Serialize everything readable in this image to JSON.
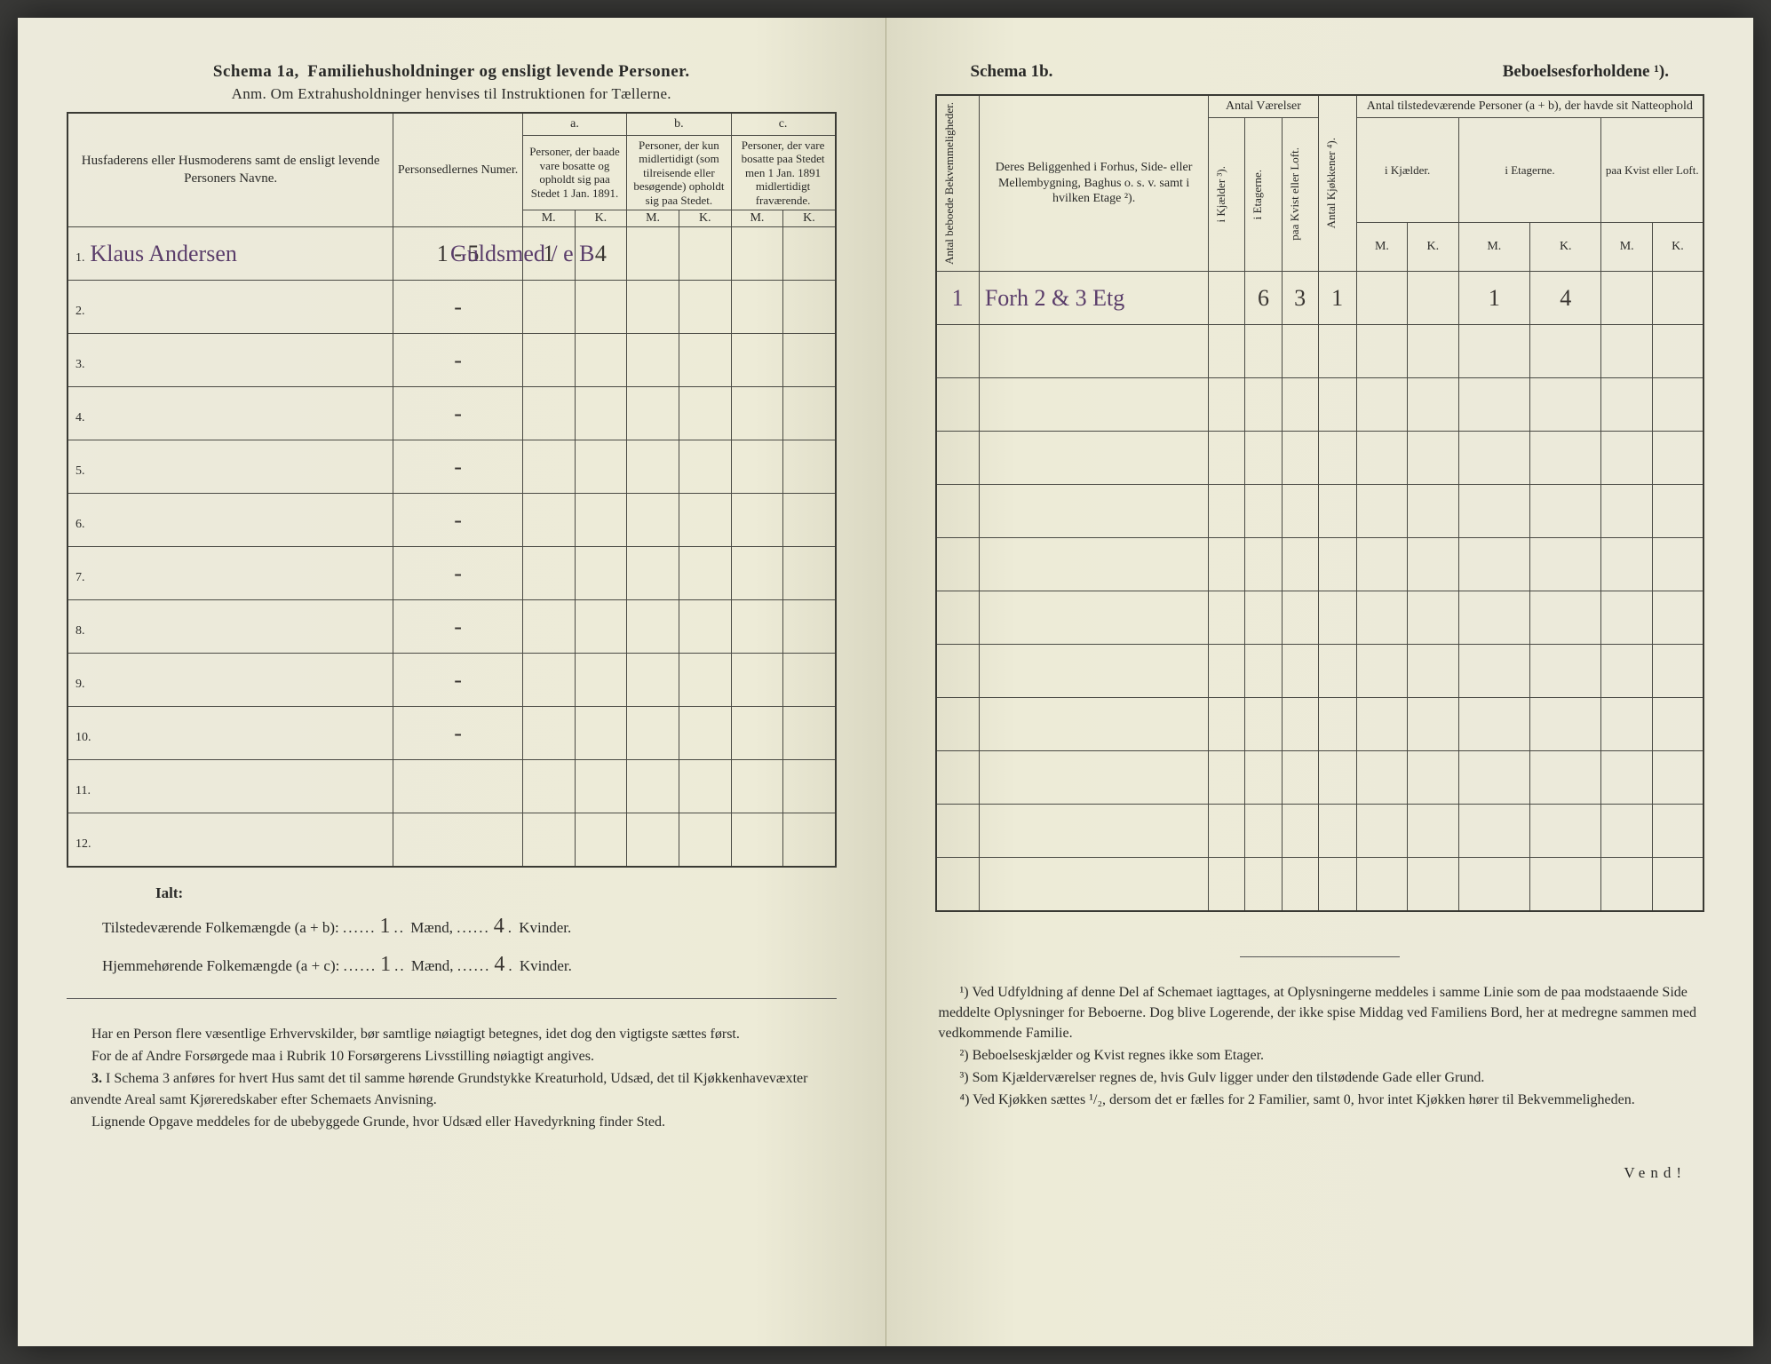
{
  "left": {
    "title_prefix": "Schema 1a,",
    "title_main": "Familiehusholdninger og ensligt levende Personer.",
    "anm": "Anm. Om Extrahusholdninger henvises til Instruktionen for Tællerne.",
    "header_name": "Husfaderens eller Husmoderens samt de ensligt levende Personers Navne.",
    "header_numer": "Personsedlernes Numer.",
    "col_a": "a.",
    "col_b": "b.",
    "col_c": "c.",
    "col_a_txt": "Personer, der baade vare bosatte og opholdt sig paa Stedet 1 Jan. 1891.",
    "col_b_txt": "Personer, der kun midlertidigt (som tilreisende eller besøgende) opholdt sig paa Stedet.",
    "col_c_txt": "Personer, der vare bosatte paa Stedet men 1 Jan. 1891 midlertidigt fraværende.",
    "mk_m": "M.",
    "mk_k": "K.",
    "rows": [
      {
        "n": "1.",
        "name": "Klaus Andersen",
        "numer": "1 - 5",
        "aM": "1",
        "aK": "4",
        "bM": "",
        "bK": "",
        "cM": "",
        "cK": "",
        "occ": "Guldsmed / e B"
      },
      {
        "n": "2.",
        "name": "",
        "numer": "-",
        "aM": "",
        "aK": "",
        "bM": "",
        "bK": "",
        "cM": "",
        "cK": ""
      },
      {
        "n": "3.",
        "name": "",
        "numer": "-",
        "aM": "",
        "aK": "",
        "bM": "",
        "bK": "",
        "cM": "",
        "cK": ""
      },
      {
        "n": "4.",
        "name": "",
        "numer": "-",
        "aM": "",
        "aK": "",
        "bM": "",
        "bK": "",
        "cM": "",
        "cK": ""
      },
      {
        "n": "5.",
        "name": "",
        "numer": "-",
        "aM": "",
        "aK": "",
        "bM": "",
        "bK": "",
        "cM": "",
        "cK": ""
      },
      {
        "n": "6.",
        "name": "",
        "numer": "-",
        "aM": "",
        "aK": "",
        "bM": "",
        "bK": "",
        "cM": "",
        "cK": ""
      },
      {
        "n": "7.",
        "name": "",
        "numer": "-",
        "aM": "",
        "aK": "",
        "bM": "",
        "bK": "",
        "cM": "",
        "cK": ""
      },
      {
        "n": "8.",
        "name": "",
        "numer": "-",
        "aM": "",
        "aK": "",
        "bM": "",
        "bK": "",
        "cM": "",
        "cK": ""
      },
      {
        "n": "9.",
        "name": "",
        "numer": "-",
        "aM": "",
        "aK": "",
        "bM": "",
        "bK": "",
        "cM": "",
        "cK": ""
      },
      {
        "n": "10.",
        "name": "",
        "numer": "-",
        "aM": "",
        "aK": "",
        "bM": "",
        "bK": "",
        "cM": "",
        "cK": ""
      },
      {
        "n": "11.",
        "name": "",
        "numer": "",
        "aM": "",
        "aK": "",
        "bM": "",
        "bK": "",
        "cM": "",
        "cK": ""
      },
      {
        "n": "12.",
        "name": "",
        "numer": "",
        "aM": "",
        "aK": "",
        "bM": "",
        "bK": "",
        "cM": "",
        "cK": ""
      }
    ],
    "totals_label": "Ialt:",
    "totals_line1_a": "Tilstedeværende Folkemængde (a + b):",
    "totals_line1_m": "1",
    "totals_m_lbl": "Mænd,",
    "totals_line1_k": "4",
    "totals_k_lbl": "Kvinder.",
    "totals_line2_a": "Hjemmehørende Folkemængde (a + c):",
    "totals_line2_m": "1",
    "totals_line2_k": "4",
    "foot_p1": "Har en Person flere væsentlige Erhvervskilder, bør samtlige nøiagtigt betegnes, idet dog den vigtigste sættes først.",
    "foot_p2": "For de af Andre Forsørgede maa i Rubrik 10 Forsørgerens Livsstilling nøiagtigt angives.",
    "foot_p3_lead": "3.",
    "foot_p3": "I Schema 3 anføres for hvert Hus samt det til samme hørende Grundstykke Kreaturhold, Udsæd, det til Kjøkkenhavevæxter anvendte Areal samt Kjøreredskaber efter Schemaets Anvisning.",
    "foot_p4": "Lignende Opgave meddeles for de ubebyggede Grunde, hvor Udsæd eller Havedyrkning finder Sted."
  },
  "right": {
    "title_left": "Schema 1b.",
    "title_right": "Beboelsesforholdene ¹).",
    "h_antal_bekv": "Antal beboede Bekvemmeligheder.",
    "h_belig": "Deres Beliggenhed i Forhus, Side- eller Mellembygning, Baghus o. s. v. samt i hvilken Etage ²).",
    "h_vaer": "Antal Værelser",
    "h_kjokken": "Antal Kjøkkener ⁴).",
    "h_tilst": "Antal tilstedeværende Personer (a + b), der havde sit Natteophold",
    "h_kjael": "i Kjælder ³).",
    "h_etag": "i Etagerne.",
    "h_kvist": "paa Kvist eller Loft.",
    "h_ikjael": "i Kjælder.",
    "h_ietag": "i Etagerne.",
    "h_paakvist": "paa Kvist eller Loft.",
    "mk_m": "M.",
    "mk_k": "K.",
    "rows": [
      {
        "bekv": "1",
        "belig": "Forh 2 & 3 Etg",
        "kjael": "",
        "etag": "6",
        "kvist": "3",
        "kjok": "1",
        "kM": "",
        "kK": "",
        "eM": "1",
        "eK": "4",
        "lM": "",
        "lK": ""
      },
      {
        "bekv": "",
        "belig": "",
        "kjael": "",
        "etag": "",
        "kvist": "",
        "kjok": "",
        "kM": "",
        "kK": "",
        "eM": "",
        "eK": "",
        "lM": "",
        "lK": ""
      },
      {
        "bekv": "",
        "belig": "",
        "kjael": "",
        "etag": "",
        "kvist": "",
        "kjok": "",
        "kM": "",
        "kK": "",
        "eM": "",
        "eK": "",
        "lM": "",
        "lK": ""
      },
      {
        "bekv": "",
        "belig": "",
        "kjael": "",
        "etag": "",
        "kvist": "",
        "kjok": "",
        "kM": "",
        "kK": "",
        "eM": "",
        "eK": "",
        "lM": "",
        "lK": ""
      },
      {
        "bekv": "",
        "belig": "",
        "kjael": "",
        "etag": "",
        "kvist": "",
        "kjok": "",
        "kM": "",
        "kK": "",
        "eM": "",
        "eK": "",
        "lM": "",
        "lK": ""
      },
      {
        "bekv": "",
        "belig": "",
        "kjael": "",
        "etag": "",
        "kvist": "",
        "kjok": "",
        "kM": "",
        "kK": "",
        "eM": "",
        "eK": "",
        "lM": "",
        "lK": ""
      },
      {
        "bekv": "",
        "belig": "",
        "kjael": "",
        "etag": "",
        "kvist": "",
        "kjok": "",
        "kM": "",
        "kK": "",
        "eM": "",
        "eK": "",
        "lM": "",
        "lK": ""
      },
      {
        "bekv": "",
        "belig": "",
        "kjael": "",
        "etag": "",
        "kvist": "",
        "kjok": "",
        "kM": "",
        "kK": "",
        "eM": "",
        "eK": "",
        "lM": "",
        "lK": ""
      },
      {
        "bekv": "",
        "belig": "",
        "kjael": "",
        "etag": "",
        "kvist": "",
        "kjok": "",
        "kM": "",
        "kK": "",
        "eM": "",
        "eK": "",
        "lM": "",
        "lK": ""
      },
      {
        "bekv": "",
        "belig": "",
        "kjael": "",
        "etag": "",
        "kvist": "",
        "kjok": "",
        "kM": "",
        "kK": "",
        "eM": "",
        "eK": "",
        "lM": "",
        "lK": ""
      },
      {
        "bekv": "",
        "belig": "",
        "kjael": "",
        "etag": "",
        "kvist": "",
        "kjok": "",
        "kM": "",
        "kK": "",
        "eM": "",
        "eK": "",
        "lM": "",
        "lK": ""
      },
      {
        "bekv": "",
        "belig": "",
        "kjael": "",
        "etag": "",
        "kvist": "",
        "kjok": "",
        "kM": "",
        "kK": "",
        "eM": "",
        "eK": "",
        "lM": "",
        "lK": ""
      }
    ],
    "fn1": "¹) Ved Udfyldning af denne Del af Schemaet iagttages, at Oplysningerne meddeles i samme Linie som de paa modstaaende Side meddelte Oplysninger for Beboerne. Dog blive Logerende, der ikke spise Middag ved Familiens Bord, her at medregne sammen med vedkommende Familie.",
    "fn2": "²) Beboelseskjælder og Kvist regnes ikke som Etager.",
    "fn3": "³) Som Kjælderværelser regnes de, hvis Gulv ligger under den tilstødende Gade eller Grund.",
    "fn4": "⁴) Ved Kjøkken sættes ¹/₂, dersom det er fælles for 2 Familier, samt 0, hvor intet Kjøkken hører til Bekvemmeligheden.",
    "vend": "Vend!"
  }
}
